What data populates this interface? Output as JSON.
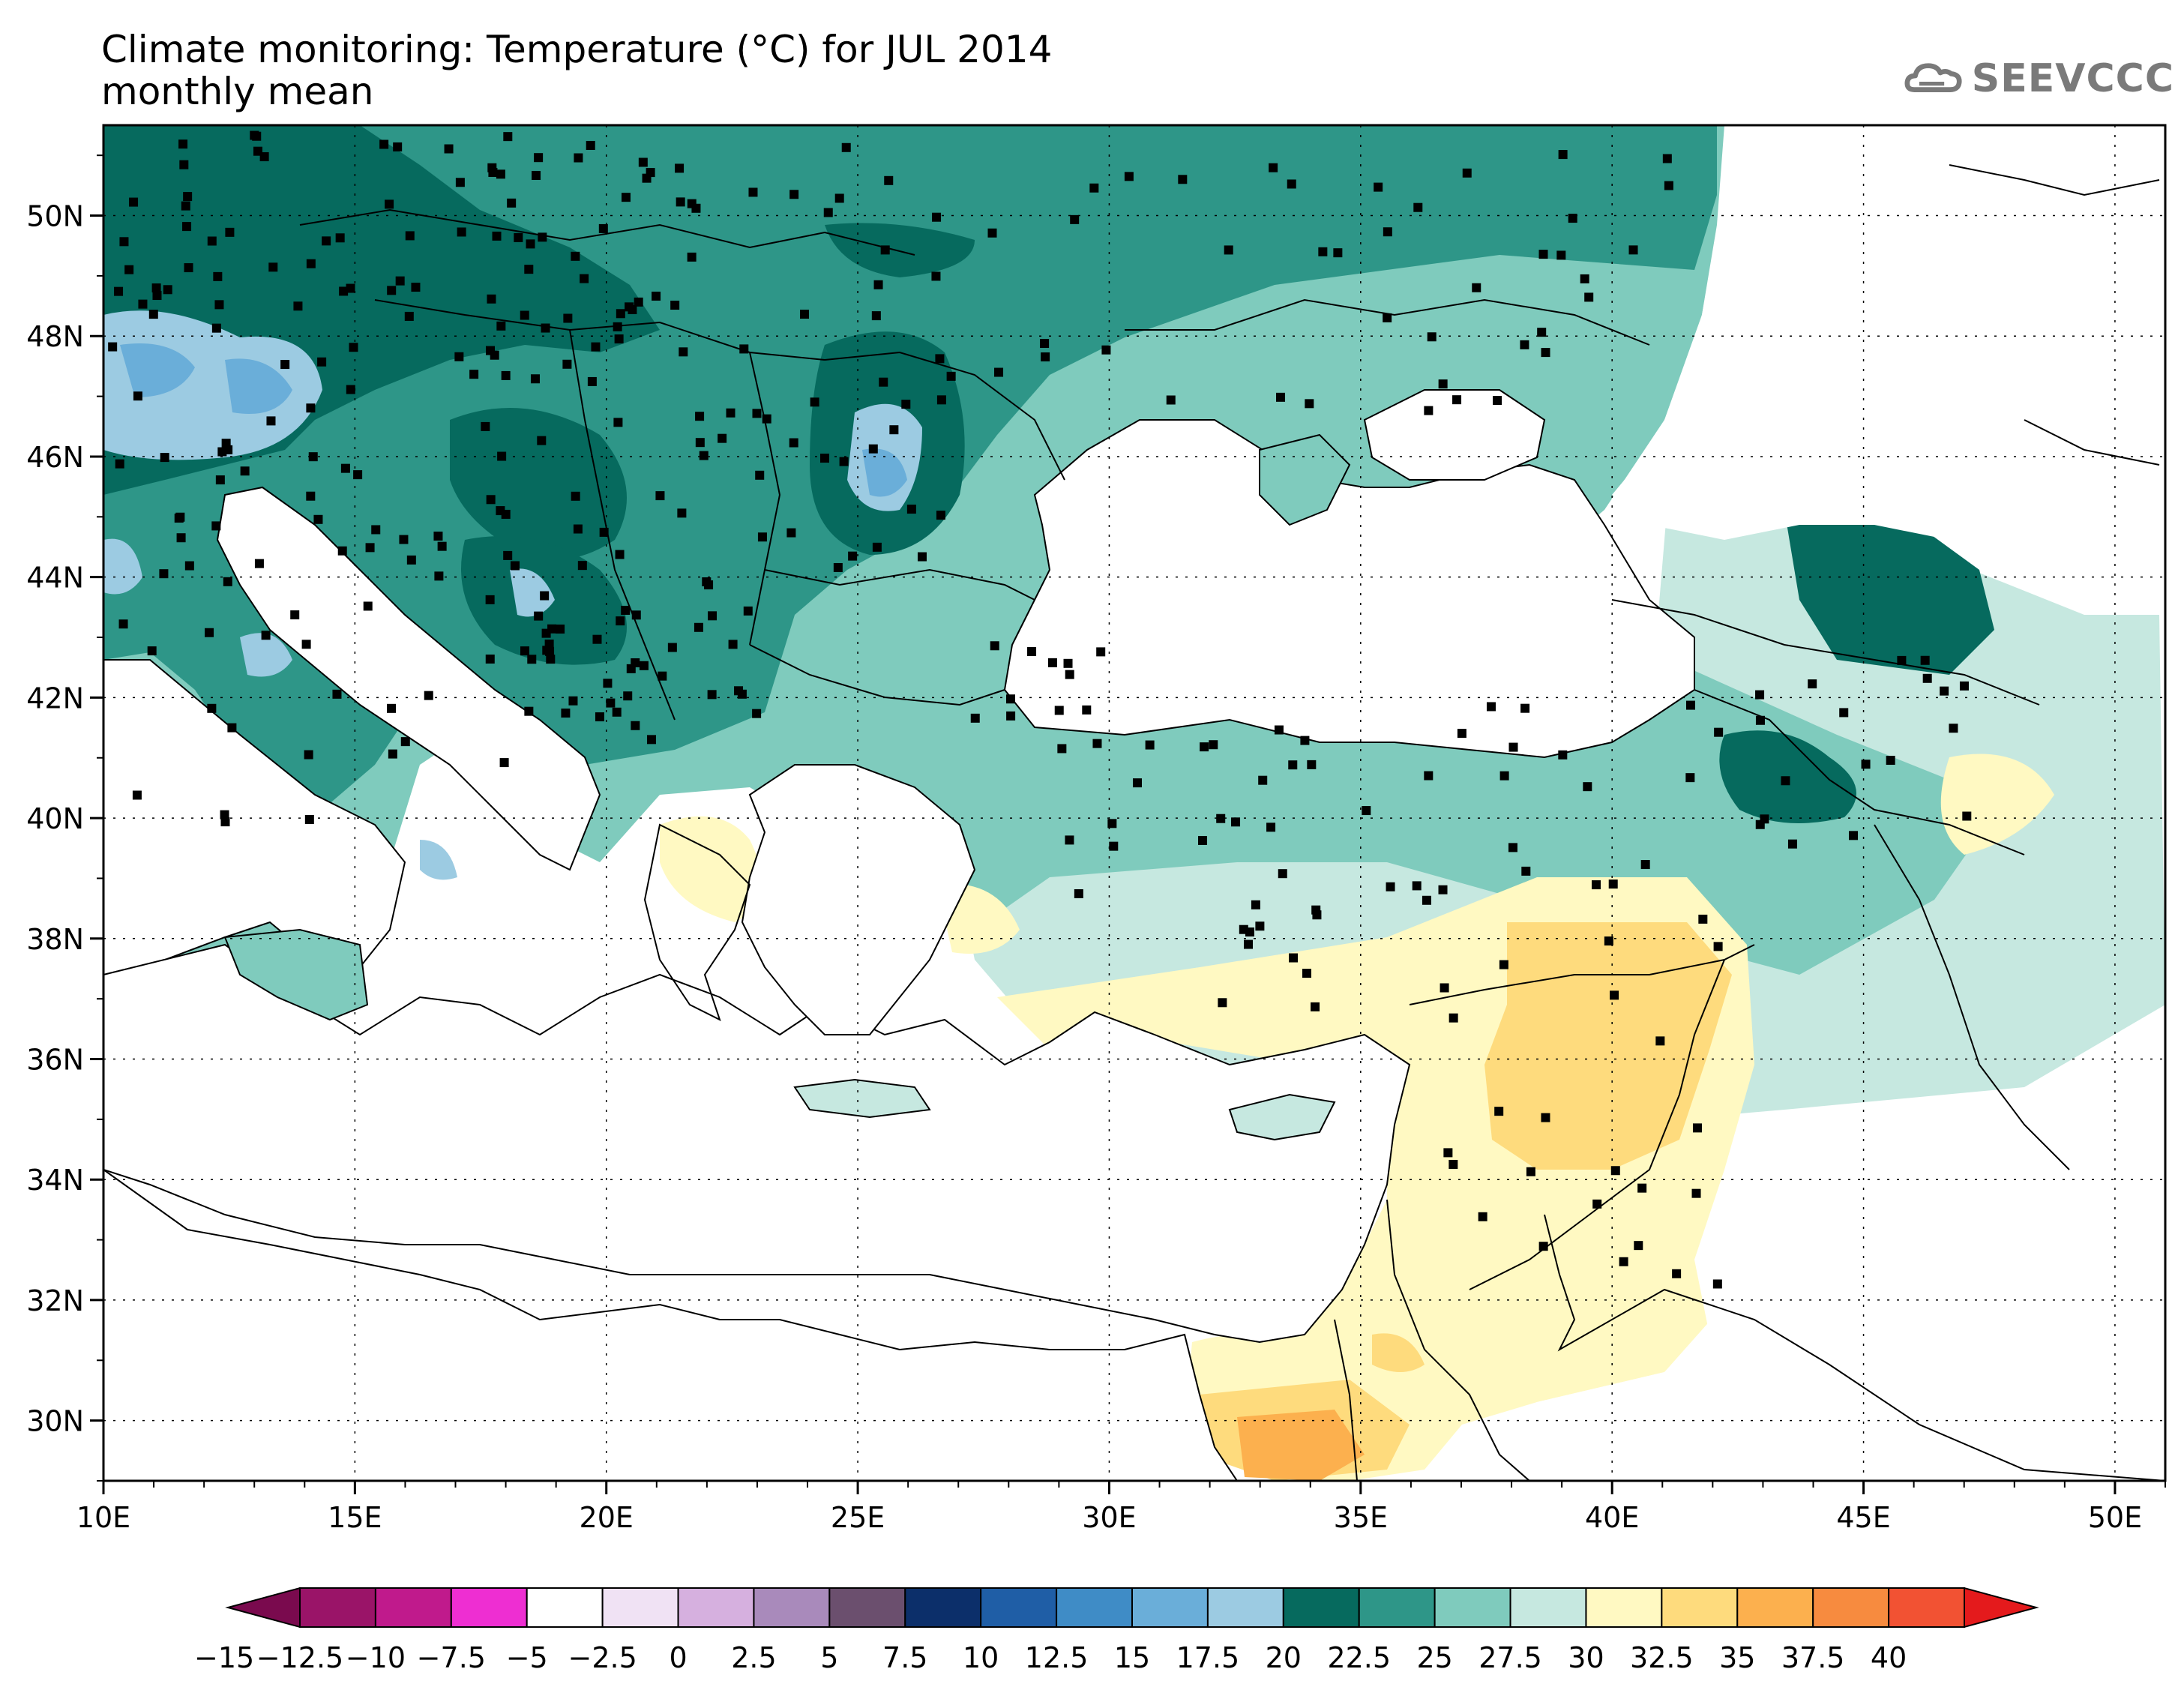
{
  "title": {
    "line1": "Climate monitoring: Temperature (°C) for JUL 2014",
    "line2": "monthly mean"
  },
  "logo": {
    "text": "SEEVCCC",
    "icon": "cloud-icon"
  },
  "map": {
    "lon_range": [
      10,
      51
    ],
    "lat_range": [
      29,
      51.5
    ],
    "lon_ticks": [
      "10E",
      "15E",
      "20E",
      "25E",
      "30E",
      "35E",
      "40E",
      "45E",
      "50E"
    ],
    "lat_ticks": [
      "30N",
      "32N",
      "34N",
      "36N",
      "38N",
      "40N",
      "42N",
      "44N",
      "46N",
      "48N",
      "50N"
    ],
    "grid": "dotted"
  },
  "legend": {
    "labels": [
      "−15",
      "−12.5",
      "−10",
      "−7.5",
      "−5",
      "−2.5",
      "0",
      "2.5",
      "5",
      "7.5",
      "10",
      "12.5",
      "15",
      "17.5",
      "20",
      "22.5",
      "25",
      "27.5",
      "30",
      "32.5",
      "35",
      "37.5",
      "40"
    ],
    "colors": {
      "under": "#7a0a4e",
      "bins": [
        "#9a1468",
        "#c01a8c",
        "#ee2ed2",
        "#ffffff",
        "#f0e2f4",
        "#d6b0df",
        "#a98abb",
        "#6b4f6e",
        "#0c2f6a",
        "#1f5ea6",
        "#3f8cc6",
        "#6aaed9",
        "#9ccbe2",
        "#066a5e",
        "#2e9688",
        "#7fcbbd",
        "#c6e8e0",
        "#fff9c2",
        "#fedb7d",
        "#fcb04e",
        "#f78b3f",
        "#f25233"
      ],
      "over": "#e41a1c"
    }
  },
  "colors": {
    "t17": "#9ccbe2",
    "t15": "#6aaed9",
    "t12": "#3f8cc6",
    "t20": "#066a5e",
    "t22": "#2e9688",
    "t25": "#7fcbbd",
    "t27": "#c6e8e0",
    "t30": "#fff9c2",
    "t32": "#fedb7d",
    "t35": "#fcb04e"
  }
}
